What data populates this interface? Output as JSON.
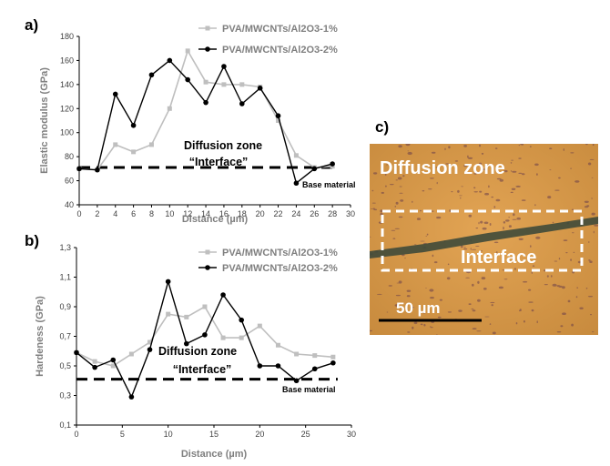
{
  "panels": {
    "a": "a)",
    "b": "b)",
    "c": "c)"
  },
  "colors": {
    "series1": "#bfbfbf",
    "series2": "#000000",
    "baseline": "#000000"
  },
  "chart_data": [
    {
      "type": "line",
      "panel": "a)",
      "xlabel": "Distance (µm)",
      "ylabel": "Elastic modulus (GPa)",
      "xlim": [
        0,
        30
      ],
      "ylim": [
        40,
        180
      ],
      "xticks": [
        "0",
        "2",
        "4",
        "6",
        "8",
        "10",
        "12",
        "14",
        "16",
        "18",
        "20",
        "22",
        "24",
        "26",
        "28",
        "30"
      ],
      "yticks": [
        "40",
        "60",
        "80",
        "100",
        "120",
        "140",
        "160",
        "180"
      ],
      "series": [
        {
          "name": "PVA/MWCNTs/Al2O3-1%",
          "x": [
            0,
            2,
            4,
            6,
            8,
            10,
            12,
            14,
            16,
            18,
            20,
            22,
            24,
            26,
            28
          ],
          "values": [
            70,
            69,
            90,
            84,
            90,
            120,
            168,
            142,
            140,
            140,
            138,
            110,
            81,
            71,
            72
          ]
        },
        {
          "name": "PVA/MWCNTs/Al2O3-2%",
          "x": [
            0,
            2,
            4,
            6,
            8,
            10,
            12,
            14,
            16,
            18,
            20,
            22,
            24,
            26,
            28
          ],
          "values": [
            70,
            69,
            132,
            106,
            148,
            160,
            144,
            125,
            155,
            124,
            137,
            114,
            58,
            70,
            74
          ]
        }
      ],
      "baseline": 71,
      "annotation": "Diffusion zone",
      "annotation2": "“Interface”",
      "baseline_label": "Base material"
    },
    {
      "type": "line",
      "panel": "b)",
      "xlabel": "Distance (µm)",
      "ylabel": "Hardeness (GPa)",
      "xlim": [
        0,
        30
      ],
      "ylim": [
        0.1,
        1.3
      ],
      "xticks": [
        "0",
        "5",
        "10",
        "15",
        "20",
        "25",
        "30"
      ],
      "yticks": [
        "0,1",
        "0,3",
        "0,5",
        "0,7",
        "0,9",
        "1,1",
        "1,3"
      ],
      "series": [
        {
          "name": "PVA/MWCNTs/Al2O3-1%",
          "x": [
            0,
            2,
            4,
            6,
            8,
            10,
            12,
            14,
            16,
            18,
            20,
            22,
            24,
            26,
            28
          ],
          "values": [
            0.59,
            0.53,
            0.5,
            0.58,
            0.66,
            0.85,
            0.83,
            0.9,
            0.69,
            0.69,
            0.77,
            0.64,
            0.58,
            0.57,
            0.56
          ]
        },
        {
          "name": "PVA/MWCNTs/Al2O3-2%",
          "x": [
            0,
            2,
            4,
            6,
            8,
            10,
            12,
            14,
            16,
            18,
            20,
            22,
            24,
            26,
            28
          ],
          "values": [
            0.59,
            0.49,
            0.54,
            0.29,
            0.61,
            1.07,
            0.65,
            0.71,
            0.98,
            0.81,
            0.5,
            0.5,
            0.4,
            0.48,
            0.52
          ]
        }
      ],
      "baseline": 0.41,
      "annotation": "Diffusion zone",
      "annotation2": "“Interface”",
      "baseline_label": "Base material"
    }
  ],
  "micrograph": {
    "title": "Diffusion zone",
    "label": "Interface",
    "scale": "50 µm"
  }
}
